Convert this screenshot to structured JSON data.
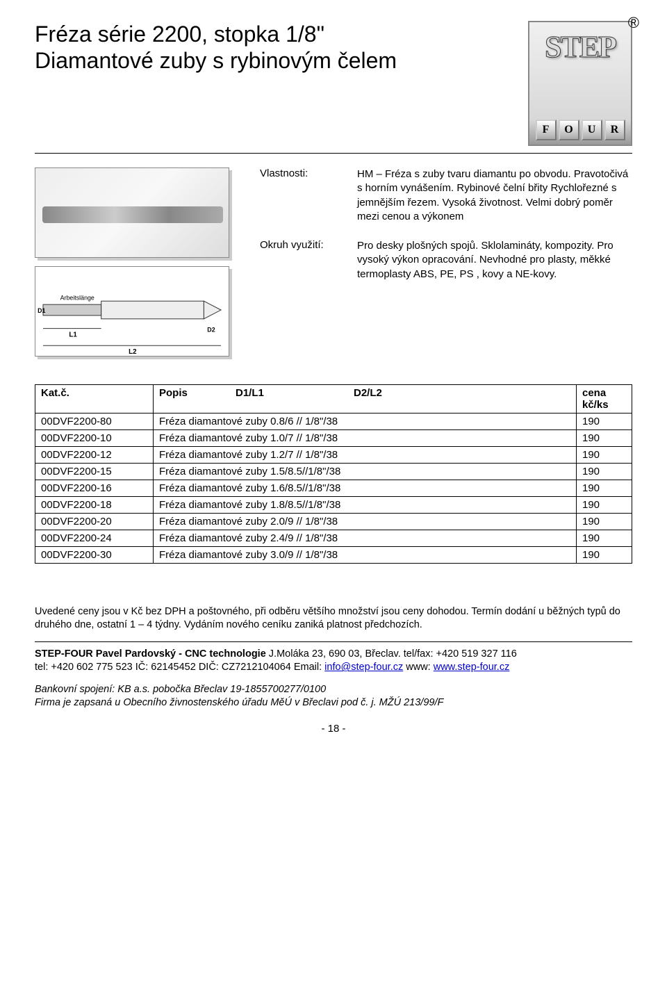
{
  "header": {
    "title_l1": "Fréza série 2200, stopka 1/8\"",
    "title_l2": "Diamantové zuby s rybinovým čelem",
    "logo_text": "STEP",
    "logo_four": [
      "F",
      "O",
      "U",
      "R"
    ]
  },
  "props": {
    "label_vlastnosti": "Vlastnosti:",
    "value_vlastnosti": "HM – Fréza  s zuby tvaru diamantu po obvodu. Pravotočivá s horním vynášením.  Rybinové čelní břity Rychlořezné s jemnějším  řezem. Vysoká životnost.  Velmi dobrý poměr mezi cenou a výkonem",
    "label_okruh": "Okruh využití:",
    "value_okruh": "Pro desky plošných spojů. Sklolamináty, kompozity. Pro vysoký výkon opracování. Nevhodné  pro plasty, měkké termoplasty ABS, PE, PS , kovy a NE-kovy."
  },
  "table": {
    "head_kat": "Kat.č.",
    "head_popis": "Popis",
    "head_d1": "D1/L1",
    "head_d2": "D2/L2",
    "head_cena_l1": "cena",
    "head_cena_l2": "kč/ks",
    "rows": [
      {
        "kat": "00DVF2200-80",
        "popis": "Fréza diamantové zuby 0.8/6 // 1/8\"/38",
        "cena": "190"
      },
      {
        "kat": "00DVF2200-10",
        "popis": "Fréza diamantové zuby 1.0/7 // 1/8\"/38",
        "cena": "190"
      },
      {
        "kat": "00DVF2200-12",
        "popis": "Fréza diamantové zuby 1.2/7 // 1/8\"/38",
        "cena": "190"
      },
      {
        "kat": "00DVF2200-15",
        "popis": "Fréza diamantové zuby 1.5/8.5//1/8\"/38",
        "cena": "190"
      },
      {
        "kat": "00DVF2200-16",
        "popis": "Fréza diamantové zuby 1.6/8.5//1/8\"/38",
        "cena": "190"
      },
      {
        "kat": "00DVF2200-18",
        "popis": "Fréza diamantové zuby 1.8/8.5//1/8\"/38",
        "cena": "190"
      },
      {
        "kat": "00DVF2200-20",
        "popis": "Fréza diamantové zuby 2.0/9 // 1/8\"/38",
        "cena": "190"
      },
      {
        "kat": "00DVF2200-24",
        "popis": "Fréza diamantové zuby 2.4/9 // 1/8\"/38",
        "cena": "190"
      },
      {
        "kat": "00DVF2200-30",
        "popis": "Fréza diamantové zuby 3.0/9 // 1/8\"/38",
        "cena": "190"
      }
    ]
  },
  "footer": {
    "note": "Uvedené ceny jsou v Kč bez DPH a poštovného, při odběru většího množství jsou ceny dohodou. Termín dodání u běžných typů do druhého dne, ostatní 1 – 4 týdny. Vydáním nového ceníku zaniká platnost předchozích.",
    "company_l1a": "STEP-FOUR  Pavel Pardovský - CNC technologie",
    "company_l1b": "  J.Moláka 23,  690 03, Břeclav.  tel/fax: +420 519 327 116",
    "company_l2": "tel: +420 602 775 523  IČ: 62145452  DIČ: CZ7212104064  Email: ",
    "email": "info@step-four.cz",
    "company_l2b": "   www: ",
    "www": "www.step-four.cz",
    "bank": "Bankovní spojení: KB a.s. pobočka Břeclav 19-1855700277/0100",
    "firm": "Firma je zapsaná u Obecního živnostenského úřadu MěÚ v Břeclavi pod č. j. MŽÚ 213/99/F",
    "page": "- 18 -"
  },
  "diagram": {
    "labels": {
      "arbeit": "Arbeitslänge",
      "l1": "L1",
      "l2": "L2",
      "d1": "D1",
      "d2": "D2"
    }
  }
}
